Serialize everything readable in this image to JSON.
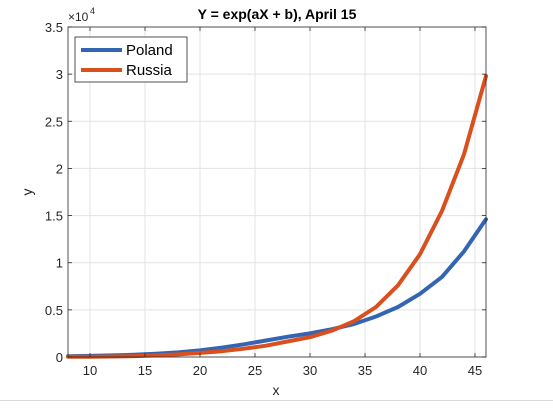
{
  "chart_data": {
    "type": "line",
    "title": "Y = exp(aX + b), April 15",
    "xlabel": "x",
    "ylabel": "y",
    "y_multiplier_label": "×10",
    "y_multiplier_exp": "4",
    "xlim": [
      8,
      46
    ],
    "ylim": [
      0,
      35000
    ],
    "x_ticks": [
      10,
      15,
      20,
      25,
      30,
      35,
      40,
      45
    ],
    "x_tick_labels": [
      "10",
      "15",
      "20",
      "25",
      "30",
      "35",
      "40",
      "45"
    ],
    "y_ticks": [
      0,
      5000,
      10000,
      15000,
      20000,
      25000,
      30000,
      35000
    ],
    "y_tick_labels": [
      "0",
      "0.5",
      "1",
      "1.5",
      "2",
      "2.5",
      "3",
      "3.5"
    ],
    "grid": true,
    "legend_position": "top-left",
    "series": [
      {
        "name": "Poland",
        "color": "#3465b3",
        "x": [
          8,
          10,
          12,
          14,
          16,
          18,
          20,
          22,
          24,
          26,
          28,
          30,
          32,
          34,
          36,
          38,
          40,
          42,
          44,
          46
        ],
        "y": [
          80,
          115,
          165,
          235,
          340,
          490,
          700,
          1000,
          1350,
          1750,
          2150,
          2500,
          2950,
          3500,
          4300,
          5300,
          6700,
          8500,
          11200,
          14600
        ]
      },
      {
        "name": "Russia",
        "color": "#d9501e",
        "x": [
          8,
          10,
          12,
          14,
          16,
          18,
          20,
          22,
          24,
          26,
          28,
          30,
          32,
          34,
          36,
          38,
          40,
          42,
          44,
          46
        ],
        "y": [
          20,
          30,
          55,
          100,
          170,
          280,
          430,
          620,
          880,
          1200,
          1650,
          2100,
          2800,
          3800,
          5300,
          7600,
          10900,
          15500,
          21500,
          29800
        ]
      }
    ]
  }
}
